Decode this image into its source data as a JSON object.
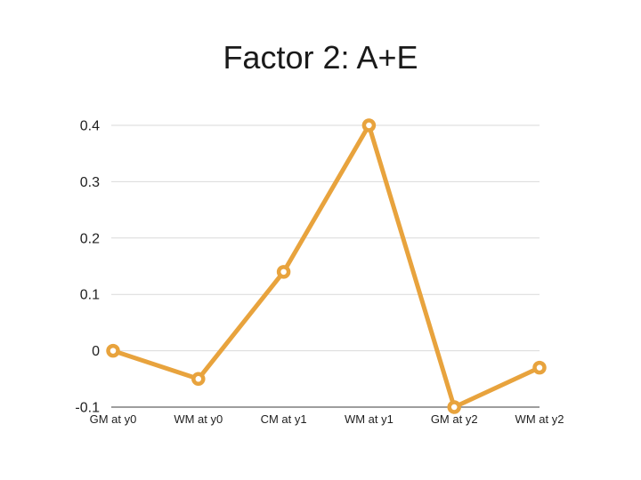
{
  "chart_data": {
    "type": "line",
    "title": "Factor 2: A+E",
    "categories": [
      "GM at y0",
      "WM at y0",
      "CM at y1",
      "WM at y1",
      "GM at y2",
      "WM at y2"
    ],
    "values": [
      0,
      -0.05,
      0.14,
      0.4,
      -0.1,
      -0.03
    ],
    "xlabel": "",
    "ylabel": "",
    "ylim": [
      -0.1,
      0.4
    ],
    "yticks": [
      0.4,
      0.3,
      0.2,
      0.1,
      0,
      -0.1
    ],
    "grid": true,
    "legend": "none",
    "marker": "open-circle",
    "colors": {
      "line": "#E8A33D",
      "marker_fill": "#ffffff",
      "gridline": "#D9D9D9",
      "axis_line": "#3b3b3b",
      "tick_label": "#1f1f1f",
      "title": "#1a1a1a",
      "background": "#ffffff"
    }
  }
}
